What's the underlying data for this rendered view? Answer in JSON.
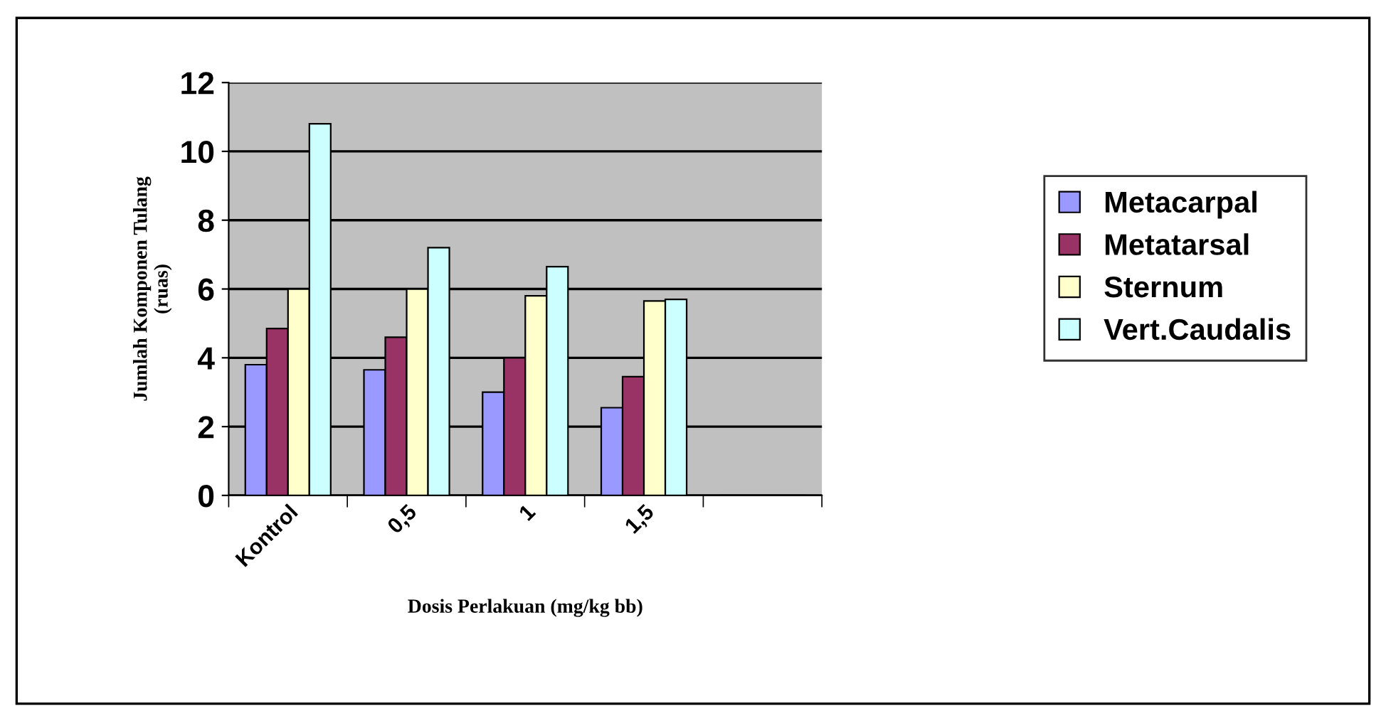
{
  "chart_data": {
    "type": "bar",
    "xlabel": "Dosis Perlakuan (mg/kg bb)",
    "ylabel": "Jumlah Komponen Tulang\n(ruas)",
    "categories": [
      "Kontrol",
      "0,5",
      "1",
      "1,5",
      null
    ],
    "series": [
      {
        "name": "Metacarpal",
        "color": "#9999ff",
        "values": [
          3.8,
          3.65,
          3.0,
          2.55,
          null
        ]
      },
      {
        "name": "Metatarsal",
        "color": "#993366",
        "values": [
          4.85,
          4.6,
          4.0,
          3.45,
          null
        ]
      },
      {
        "name": "Sternum",
        "color": "#ffffcc",
        "values": [
          6.0,
          6.0,
          5.8,
          5.65,
          null
        ]
      },
      {
        "name": "Vert.Caudalis",
        "color": "#ccffff",
        "values": [
          10.8,
          7.2,
          6.65,
          5.7,
          null
        ]
      }
    ],
    "ylim": [
      0,
      12
    ],
    "yticks": [
      0,
      2,
      4,
      6,
      8,
      10,
      12
    ],
    "grid": "y",
    "legend": "right"
  }
}
